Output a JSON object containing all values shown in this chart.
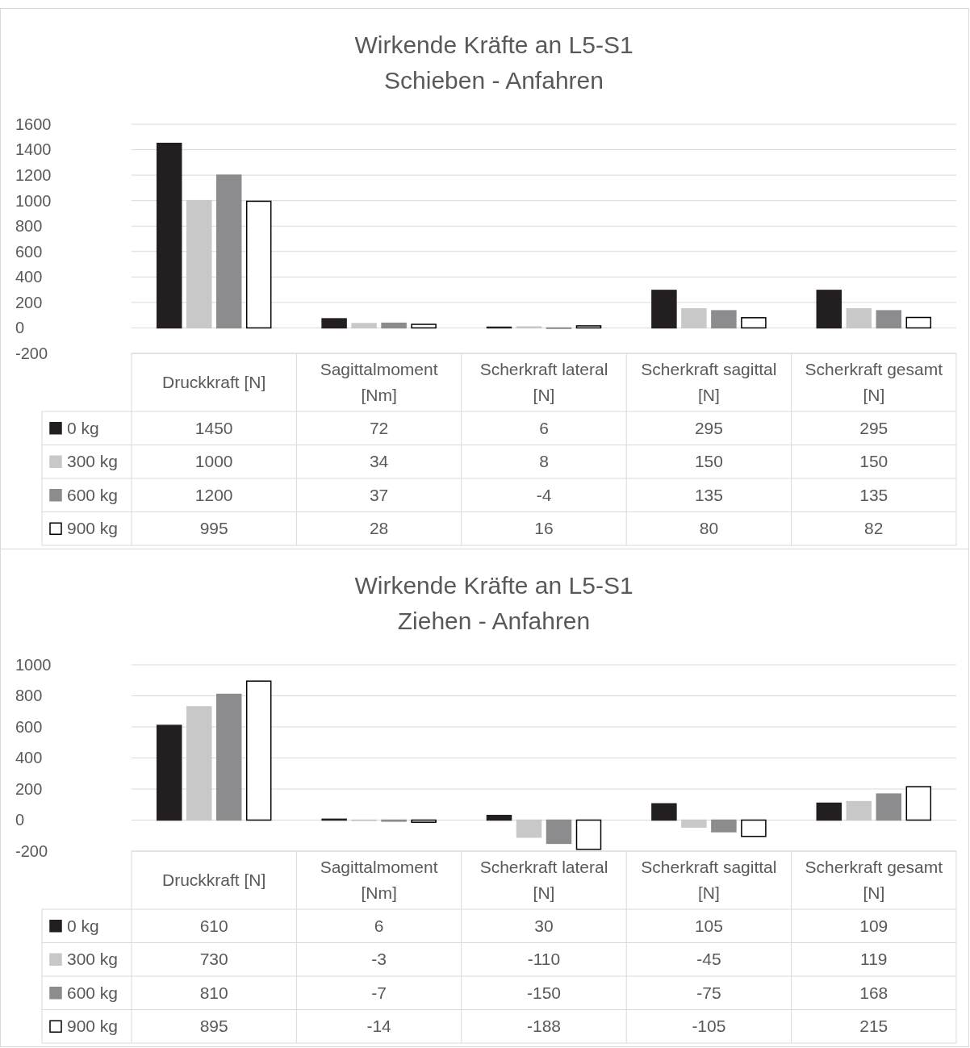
{
  "chart_data": [
    {
      "type": "bar",
      "title": "Wirkende Kräfte an L5-S1",
      "subtitle": "Schieben - Anfahren",
      "categories": [
        "Druckkraft [N]",
        "Sagittalmoment [Nm]",
        "Scherkraft lateral [N]",
        "Scherkraft sagittal [N]",
        "Scherkraft gesamt [N]"
      ],
      "series": [
        {
          "name": "0 kg",
          "color": "#231f20",
          "values": [
            1450,
            72,
            6,
            295,
            295
          ]
        },
        {
          "name": "300 kg",
          "color": "#c8c8c8",
          "values": [
            1000,
            34,
            8,
            150,
            150
          ]
        },
        {
          "name": "600 kg",
          "color": "#8c8c8e",
          "values": [
            1200,
            37,
            -4,
            135,
            135
          ]
        },
        {
          "name": "900 kg",
          "color": "#ffffff",
          "values": [
            995,
            28,
            16,
            80,
            82
          ]
        }
      ],
      "ylim": [
        -200,
        1600
      ],
      "yticks": [
        -200,
        0,
        200,
        400,
        600,
        800,
        1000,
        1200,
        1400,
        1600
      ],
      "grid": "y",
      "legend": "bottom",
      "data_labels": true
    },
    {
      "type": "bar",
      "title": "Wirkende Kräfte an L5-S1",
      "subtitle": "Ziehen - Anfahren",
      "categories": [
        "Druckkraft [N]",
        "Sagittalmoment [Nm]",
        "Scherkraft lateral [N]",
        "Scherkraft sagittal [N]",
        "Scherkraft gesamt [N]"
      ],
      "series": [
        {
          "name": "0 kg",
          "color": "#231f20",
          "values": [
            610,
            6,
            30,
            105,
            109
          ]
        },
        {
          "name": "300 kg",
          "color": "#c8c8c8",
          "values": [
            730,
            -3,
            -110,
            -45,
            119
          ]
        },
        {
          "name": "600 kg",
          "color": "#8c8c8e",
          "values": [
            810,
            -7,
            -150,
            -75,
            168
          ]
        },
        {
          "name": "900 kg",
          "color": "#ffffff",
          "values": [
            895,
            -14,
            -188,
            -105,
            215
          ]
        }
      ],
      "ylim": [
        -200,
        1000
      ],
      "yticks": [
        -200,
        0,
        200,
        400,
        600,
        800,
        1000
      ],
      "grid": "y",
      "legend": "bottom",
      "data_labels": true
    }
  ]
}
